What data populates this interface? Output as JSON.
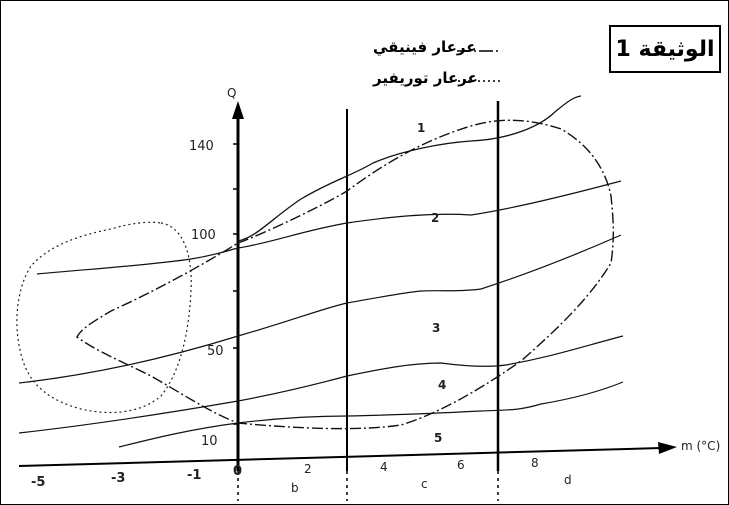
{
  "document_label": "الوثيقة 1",
  "legend": [
    {
      "label": "عرعار فينيقي",
      "style": "dash-dot"
    },
    {
      "label": "عرعار توريفير",
      "style": "dotted"
    }
  ],
  "chart_data": {
    "type": "line",
    "xlabel": "m (°C)",
    "ylabel": "Q",
    "x_ticks": [
      "-5",
      "-3",
      "-1",
      "0",
      "2",
      "4",
      "6",
      "8"
    ],
    "y_ticks": [
      "10",
      "50",
      "100",
      "140"
    ],
    "zone_labels": [
      "b",
      "c",
      "d"
    ],
    "zone_boundaries": [
      0,
      3.3,
      7
    ],
    "curve_labels": [
      "1",
      "2",
      "3",
      "4",
      "5"
    ],
    "curves": [
      {
        "name": "1",
        "points": [
          [
            0,
            97
          ],
          [
            1,
            103
          ],
          [
            3,
            118
          ],
          [
            4,
            128
          ],
          [
            6,
            138
          ],
          [
            8,
            145
          ],
          [
            9,
            156
          ]
        ]
      },
      {
        "name": "2",
        "points": [
          [
            -5.5,
            76
          ],
          [
            -3,
            78
          ],
          [
            -1,
            82
          ],
          [
            0,
            92
          ],
          [
            3,
            103
          ],
          [
            6,
            106
          ],
          [
            8,
            112
          ],
          [
            11,
            124
          ]
        ]
      },
      {
        "name": "3",
        "points": [
          [
            -6,
            28
          ],
          [
            -3,
            37
          ],
          [
            0,
            54
          ],
          [
            3,
            71
          ],
          [
            6,
            74
          ],
          [
            7,
            74
          ],
          [
            9,
            81
          ],
          [
            11,
            92
          ]
        ]
      },
      {
        "name": "4",
        "points": [
          [
            -6,
            10
          ],
          [
            -3,
            16
          ],
          [
            0,
            24
          ],
          [
            3,
            34
          ],
          [
            5.5,
            40
          ],
          [
            7,
            38
          ],
          [
            10,
            47
          ],
          [
            11,
            53
          ]
        ]
      },
      {
        "name": "5",
        "points": [
          [
            -3,
            1
          ],
          [
            -1,
            6
          ],
          [
            1,
            13
          ],
          [
            3,
            13
          ],
          [
            6,
            15
          ],
          [
            8,
            17
          ],
          [
            9,
            23
          ],
          [
            11,
            28
          ]
        ]
      }
    ]
  },
  "colors": {
    "line": "#111111",
    "background": "#ffffff"
  }
}
